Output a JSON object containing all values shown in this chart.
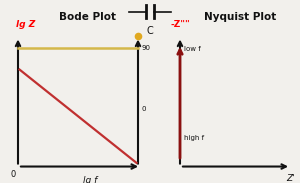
{
  "title_circuit": "C",
  "bode_title": "Bode Plot",
  "nyquist_title": "Nyquist Plot",
  "bode_ylabel": "lg Z",
  "bode_xlabel": "lg f",
  "nyquist_ylabel": "-Z\"\"",
  "nyquist_xlabel": "Z'",
  "phase_90_label": "90",
  "phase_0_label": "0",
  "low_f_label": "low f",
  "high_f_label": "high f",
  "bg_color": "#f2f0ec",
  "yellow_line_color": "#d4b84a",
  "red_line_color": "#c03030",
  "dark_red_color": "#8b1010",
  "axis_color": "#111111",
  "circle_color": "#e0a820"
}
